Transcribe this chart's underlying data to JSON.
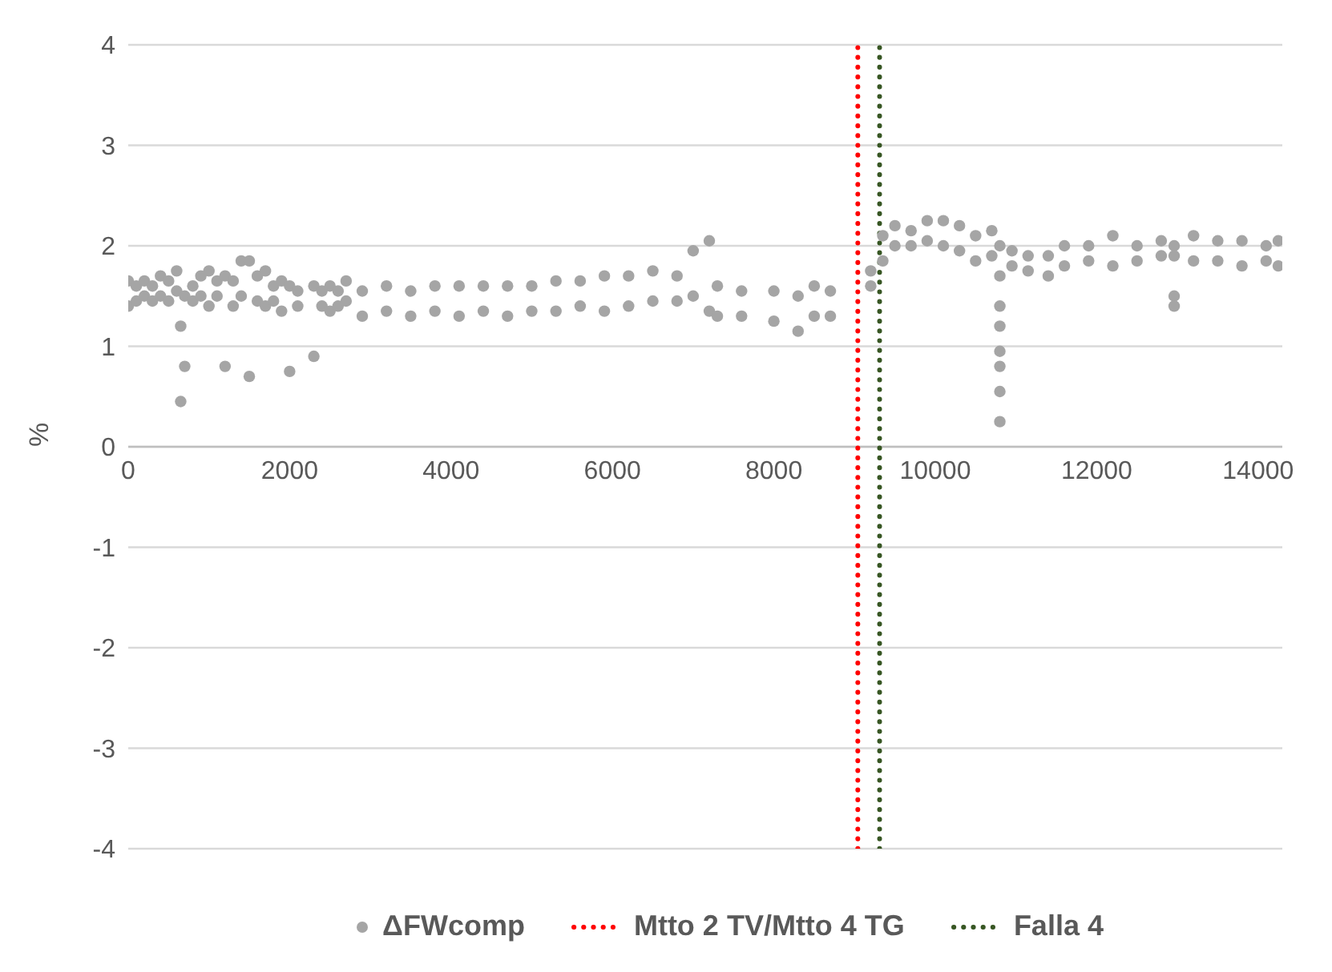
{
  "chart_data": {
    "type": "scatter",
    "ylabel": "%",
    "xlim": [
      0,
      14300
    ],
    "xticks": [
      0,
      2000,
      4000,
      6000,
      8000,
      10000,
      12000,
      14000
    ],
    "ylim": [
      -4,
      4
    ],
    "yticks": [
      -4,
      -3,
      -2,
      -1,
      0,
      1,
      2,
      3,
      4
    ],
    "grid": "y",
    "legend": "bottom",
    "marker": "circle",
    "series": [
      {
        "name": "ΔFWcomp",
        "color": "#a5a5a5",
        "x": [
          0,
          0,
          100,
          100,
          200,
          200,
          300,
          300,
          400,
          400,
          500,
          500,
          600,
          600,
          650,
          650,
          700,
          700,
          800,
          800,
          900,
          900,
          1000,
          1000,
          1100,
          1100,
          1200,
          1200,
          1300,
          1300,
          1400,
          1400,
          1500,
          1500,
          1600,
          1600,
          1700,
          1700,
          1800,
          1800,
          1900,
          1900,
          2000,
          2000,
          2100,
          2100,
          2300,
          2300,
          2400,
          2400,
          2500,
          2500,
          2600,
          2600,
          2700,
          2700,
          2900,
          2900,
          3200,
          3200,
          3500,
          3500,
          3800,
          3800,
          4100,
          4100,
          4400,
          4400,
          4700,
          4700,
          5000,
          5000,
          5300,
          5300,
          5600,
          5600,
          5900,
          5900,
          6200,
          6200,
          6500,
          6500,
          6800,
          6800,
          7000,
          7000,
          7200,
          7200,
          7300,
          7300,
          7600,
          7600,
          8000,
          8000,
          8300,
          8300,
          8500,
          8500,
          8700,
          8700,
          9200,
          9200,
          9350,
          9350,
          9500,
          9500,
          9700,
          9700,
          9900,
          9900,
          10100,
          10100,
          10300,
          10300,
          10500,
          10500,
          10700,
          10700,
          10800,
          10800,
          10800,
          10800,
          10800,
          10800,
          10800,
          10800,
          10950,
          10950,
          11150,
          11150,
          11400,
          11400,
          11600,
          11600,
          11900,
          11900,
          12200,
          12200,
          12500,
          12500,
          12800,
          12800,
          12960,
          12960,
          12960,
          12960,
          13200,
          13200,
          13500,
          13500,
          13800,
          13800,
          14100,
          14100,
          14250,
          14250
        ],
        "values": [
          1.4,
          1.65,
          1.45,
          1.6,
          1.5,
          1.65,
          1.45,
          1.6,
          1.5,
          1.7,
          1.45,
          1.65,
          1.55,
          1.75,
          0.45,
          1.2,
          0.8,
          1.5,
          1.45,
          1.6,
          1.5,
          1.7,
          1.4,
          1.75,
          1.5,
          1.65,
          0.8,
          1.7,
          1.4,
          1.65,
          1.5,
          1.85,
          0.7,
          1.85,
          1.45,
          1.7,
          1.4,
          1.75,
          1.45,
          1.6,
          1.35,
          1.65,
          0.75,
          1.6,
          1.4,
          1.55,
          0.9,
          1.6,
          1.4,
          1.55,
          1.35,
          1.6,
          1.4,
          1.55,
          1.45,
          1.65,
          1.3,
          1.55,
          1.35,
          1.6,
          1.3,
          1.55,
          1.35,
          1.6,
          1.3,
          1.6,
          1.35,
          1.6,
          1.3,
          1.6,
          1.35,
          1.6,
          1.35,
          1.65,
          1.4,
          1.65,
          1.35,
          1.7,
          1.4,
          1.7,
          1.45,
          1.75,
          1.45,
          1.7,
          1.5,
          1.95,
          1.35,
          2.05,
          1.3,
          1.6,
          1.3,
          1.55,
          1.25,
          1.55,
          1.15,
          1.5,
          1.3,
          1.6,
          1.3,
          1.55,
          1.6,
          1.75,
          1.85,
          2.1,
          2.0,
          2.2,
          2.0,
          2.15,
          2.05,
          2.25,
          2.0,
          2.25,
          1.95,
          2.2,
          1.85,
          2.1,
          1.9,
          2.15,
          1.7,
          2.0,
          1.4,
          1.2,
          0.95,
          0.8,
          0.55,
          0.25,
          1.8,
          1.95,
          1.75,
          1.9,
          1.7,
          1.9,
          1.8,
          2.0,
          1.85,
          2.0,
          1.8,
          2.1,
          1.85,
          2.0,
          1.9,
          2.05,
          1.9,
          2.0,
          1.5,
          1.4,
          1.85,
          2.1,
          1.85,
          2.05,
          1.8,
          2.05,
          1.85,
          2.0,
          1.8,
          2.05
        ]
      },
      {
        "name": "Mtto 2 TV/Mtto 4 TG",
        "color": "#ff0000",
        "type": "line",
        "line_style": "dotted",
        "marker": "none",
        "x": [
          9040,
          9040
        ],
        "values": [
          -4,
          4
        ]
      },
      {
        "name": "Falla 4",
        "color": "#375623",
        "type": "line",
        "line_style": "dotted",
        "marker": "none",
        "x": [
          9310,
          9310
        ],
        "values": [
          -4,
          4
        ]
      }
    ]
  }
}
